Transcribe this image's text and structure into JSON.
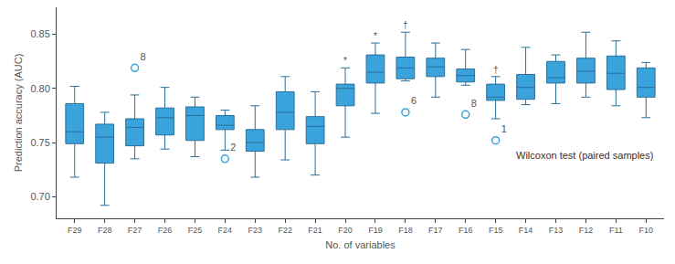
{
  "chart_data": {
    "type": "box",
    "x_label": "No. of variables",
    "y_label": "Prediction accuracy (AUC)",
    "color": "#3aa3dc",
    "categories": [
      "F29",
      "F28",
      "F27",
      "F26",
      "F25",
      "F24",
      "F23",
      "F22",
      "F21",
      "F20",
      "F19",
      "F18",
      "F17",
      "F16",
      "F15",
      "F14",
      "F13",
      "F12",
      "F11",
      "F10"
    ],
    "lower_whisker": [
      0.718,
      0.692,
      0.735,
      0.744,
      0.737,
      0.743,
      0.718,
      0.734,
      0.72,
      0.755,
      0.777,
      0.807,
      0.792,
      0.803,
      0.772,
      0.785,
      0.786,
      0.792,
      0.784,
      0.773
    ],
    "q1": [
      0.749,
      0.731,
      0.747,
      0.757,
      0.752,
      0.762,
      0.742,
      0.762,
      0.749,
      0.784,
      0.805,
      0.809,
      0.811,
      0.806,
      0.789,
      0.79,
      0.805,
      0.805,
      0.799,
      0.792
    ],
    "median": [
      0.76,
      0.755,
      0.764,
      0.773,
      0.775,
      0.766,
      0.75,
      0.778,
      0.765,
      0.8,
      0.815,
      0.819,
      0.82,
      0.812,
      0.792,
      0.801,
      0.81,
      0.816,
      0.814,
      0.801
    ],
    "q3": [
      0.786,
      0.767,
      0.772,
      0.782,
      0.783,
      0.775,
      0.762,
      0.797,
      0.774,
      0.804,
      0.831,
      0.829,
      0.828,
      0.818,
      0.804,
      0.813,
      0.825,
      0.828,
      0.83,
      0.819
    ],
    "upper_whisker": [
      0.802,
      0.778,
      0.794,
      0.801,
      0.792,
      0.78,
      0.784,
      0.811,
      0.797,
      0.819,
      0.842,
      0.852,
      0.842,
      0.836,
      0.811,
      0.838,
      0.831,
      0.852,
      0.844,
      0.824
    ],
    "significance": [
      null,
      null,
      null,
      null,
      null,
      null,
      null,
      null,
      null,
      "*",
      "*",
      "†",
      null,
      null,
      "†",
      null,
      null,
      null,
      null,
      null
    ],
    "outliers": [
      {
        "category": "F27",
        "value": 0.819,
        "label": "8"
      },
      {
        "category": "F24",
        "value": 0.735,
        "label": "2"
      },
      {
        "category": "F18",
        "value": 0.778,
        "label": "6"
      },
      {
        "category": "F16",
        "value": 0.776,
        "label": "8"
      },
      {
        "category": "F15",
        "value": 0.752,
        "label": "1"
      }
    ],
    "annotations": [
      "Wilcoxon test (paired samples)"
    ],
    "ylim": [
      0.68,
      0.875
    ],
    "yticks": [
      {
        "value": 0.7,
        "label": "0.70"
      },
      {
        "value": 0.75,
        "label": "0.75"
      },
      {
        "value": 0.8,
        "label": "0.80"
      },
      {
        "value": 0.85,
        "label": "0.85"
      }
    ],
    "grid": false
  }
}
